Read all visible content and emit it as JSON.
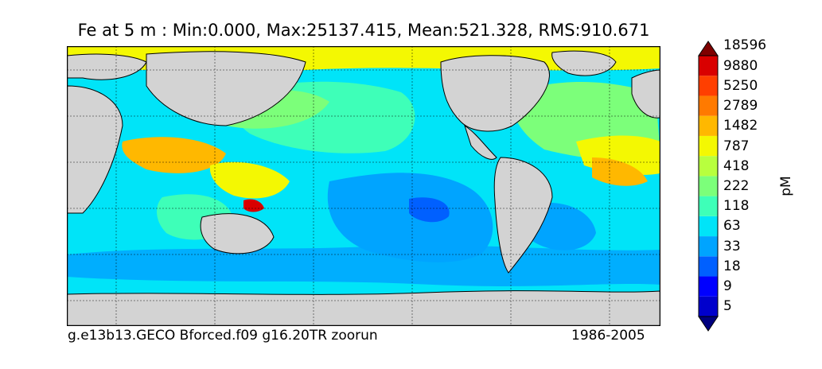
{
  "title": "Fe at 5 m : Min:0.000, Max:25137.415, Mean:521.328, RMS:910.671",
  "footer": {
    "left": "g.e13b13.GECO Bforced.f09 g16.20TR zoorun",
    "right": "1986-2005"
  },
  "colorbar": {
    "unit": "pM",
    "levels": [
      "5",
      "9",
      "18",
      "33",
      "63",
      "118",
      "222",
      "418",
      "787",
      "1482",
      "2789",
      "5250",
      "9880",
      "18596"
    ],
    "colors": [
      "#00007f",
      "#0000cc",
      "#0000ff",
      "#0060ff",
      "#00a4ff",
      "#00e4f8",
      "#3effb8",
      "#7cff7a",
      "#b8ff3e",
      "#f4f802",
      "#ffb800",
      "#ff7a00",
      "#ff3f00",
      "#d90000",
      "#7f0000"
    ],
    "extend": "both"
  },
  "map": {
    "land_color": "#d3d3d3",
    "ocean_background_color": "#00e4f8",
    "gridlines": "dashed"
  }
}
